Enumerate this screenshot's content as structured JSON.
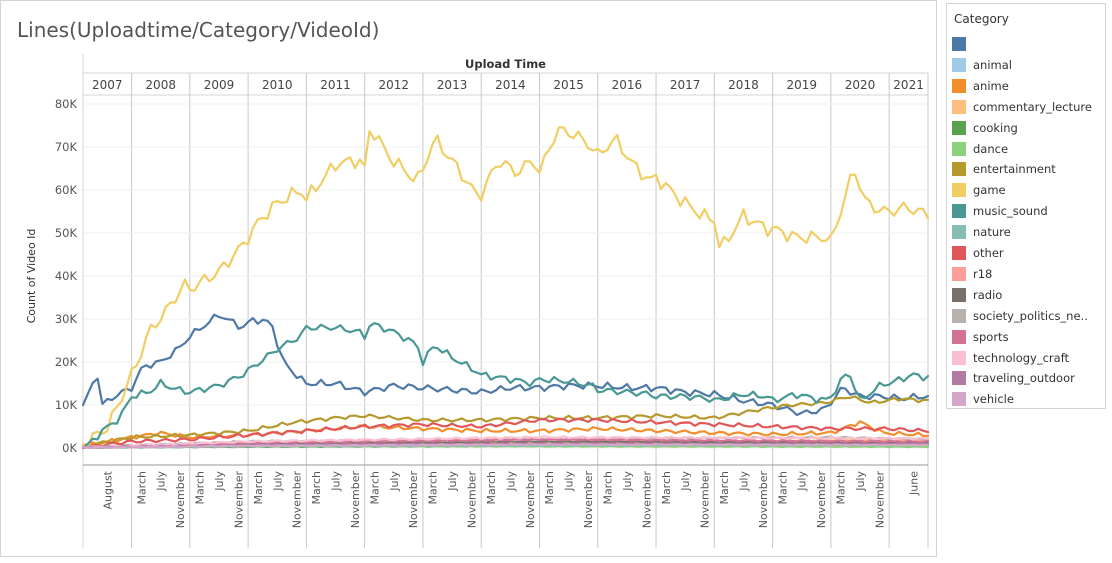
{
  "chart_data": {
    "type": "line",
    "title": "Lines(Uploadtime/Category/VideoId)",
    "column_header": "Upload Time",
    "years": [
      "2007",
      "2008",
      "2009",
      "2010",
      "2011",
      "2012",
      "2013",
      "2014",
      "2015",
      "2016",
      "2017",
      "2018",
      "2019",
      "2020",
      "2021"
    ],
    "year_month_labels": [
      [
        "August"
      ],
      [
        "March",
        "July",
        "November"
      ],
      [
        "March",
        "July",
        "November"
      ],
      [
        "March",
        "July",
        "November"
      ],
      [
        "March",
        "July",
        "November"
      ],
      [
        "March",
        "July",
        "November"
      ],
      [
        "March",
        "July",
        "November"
      ],
      [
        "March",
        "July",
        "November"
      ],
      [
        "March",
        "July",
        "November"
      ],
      [
        "March",
        "July",
        "November"
      ],
      [
        "March",
        "July",
        "November"
      ],
      [
        "March",
        "July",
        "November"
      ],
      [
        "March",
        "July",
        "November"
      ],
      [
        "March",
        "July",
        "November"
      ],
      [
        "June"
      ]
    ],
    "ylabel": "Count of Video Id",
    "y_ticks": [
      "0K",
      "10K",
      "20K",
      "30K",
      "40K",
      "50K",
      "60K",
      "70K",
      "80K"
    ],
    "y_tick_values": [
      0,
      10000,
      20000,
      30000,
      40000,
      50000,
      60000,
      70000,
      80000
    ],
    "ylim": [
      0,
      80000
    ],
    "x_start": "2007-03",
    "x_end": "2021-09",
    "legend_title": "Category",
    "series": [
      {
        "name": "",
        "color": "#4e79a7",
        "anchors": [
          [
            2007.2,
            10000
          ],
          [
            2007.4,
            18000
          ],
          [
            2007.5,
            10000
          ],
          [
            2007.7,
            12000
          ],
          [
            2008.0,
            14000
          ],
          [
            2008.2,
            19000
          ],
          [
            2008.5,
            20000
          ],
          [
            2008.8,
            23000
          ],
          [
            2009.0,
            26000
          ],
          [
            2009.5,
            31000
          ],
          [
            2009.9,
            28000
          ],
          [
            2010.1,
            30000
          ],
          [
            2010.4,
            29000
          ],
          [
            2010.6,
            20000
          ],
          [
            2010.9,
            16000
          ],
          [
            2011.0,
            15000
          ],
          [
            2011.5,
            15000
          ],
          [
            2012.0,
            13000
          ],
          [
            2012.5,
            14500
          ],
          [
            2013.0,
            14000
          ],
          [
            2013.5,
            13500
          ],
          [
            2014.0,
            13000
          ],
          [
            2014.5,
            14000
          ],
          [
            2015.0,
            14000
          ],
          [
            2015.5,
            14500
          ],
          [
            2016.0,
            14500
          ],
          [
            2016.5,
            14000
          ],
          [
            2017.0,
            14000
          ],
          [
            2017.5,
            13000
          ],
          [
            2018.0,
            12500
          ],
          [
            2018.5,
            11000
          ],
          [
            2019.0,
            10000
          ],
          [
            2019.5,
            8000
          ],
          [
            2019.9,
            9000
          ],
          [
            2020.2,
            14000
          ],
          [
            2020.5,
            12000
          ],
          [
            2020.9,
            12000
          ],
          [
            2021.2,
            11500
          ],
          [
            2021.6,
            12000
          ]
        ],
        "amp": 900
      },
      {
        "name": "animal",
        "color": "#a0cbe8",
        "anchors": [
          [
            2007.2,
            100
          ],
          [
            2010.0,
            700
          ],
          [
            2014.0,
            1000
          ],
          [
            2018.0,
            900
          ],
          [
            2021.6,
            1000
          ]
        ],
        "amp": 150
      },
      {
        "name": "anime",
        "color": "#f28e2b",
        "anchors": [
          [
            2007.2,
            500
          ],
          [
            2008.0,
            2500
          ],
          [
            2008.5,
            3500
          ],
          [
            2009.0,
            2500
          ],
          [
            2010.0,
            3000
          ],
          [
            2011.0,
            4000
          ],
          [
            2012.0,
            5000
          ],
          [
            2013.0,
            4500
          ],
          [
            2014.0,
            4000
          ],
          [
            2015.0,
            4000
          ],
          [
            2016.0,
            4500
          ],
          [
            2017.0,
            4000
          ],
          [
            2018.0,
            3500
          ],
          [
            2019.0,
            3200
          ],
          [
            2020.0,
            3500
          ],
          [
            2020.5,
            6000
          ],
          [
            2020.9,
            3500
          ],
          [
            2021.6,
            3000
          ]
        ],
        "amp": 500
      },
      {
        "name": "commentary_lecture",
        "color": "#ffbe7d",
        "anchors": [
          [
            2007.2,
            100
          ],
          [
            2010.0,
            700
          ],
          [
            2014.0,
            1300
          ],
          [
            2018.0,
            1600
          ],
          [
            2021.6,
            2000
          ]
        ],
        "amp": 200
      },
      {
        "name": "cooking",
        "color": "#59a14f",
        "anchors": [
          [
            2007.2,
            100
          ],
          [
            2010.0,
            300
          ],
          [
            2015.0,
            500
          ],
          [
            2021.6,
            700
          ]
        ],
        "amp": 100
      },
      {
        "name": "dance",
        "color": "#8cd17d",
        "anchors": [
          [
            2007.2,
            100
          ],
          [
            2010.0,
            500
          ],
          [
            2015.0,
            400
          ],
          [
            2021.6,
            300
          ]
        ],
        "amp": 100
      },
      {
        "name": "entertainment",
        "color": "#b6992d",
        "anchors": [
          [
            2007.2,
            500
          ],
          [
            2008.0,
            2500
          ],
          [
            2009.0,
            3000
          ],
          [
            2010.0,
            4000
          ],
          [
            2010.8,
            6000
          ],
          [
            2011.5,
            7000
          ],
          [
            2012.0,
            7500
          ],
          [
            2013.0,
            6500
          ],
          [
            2014.0,
            6500
          ],
          [
            2015.0,
            7000
          ],
          [
            2016.0,
            7000
          ],
          [
            2017.0,
            7500
          ],
          [
            2018.0,
            7000
          ],
          [
            2018.8,
            9000
          ],
          [
            2019.3,
            10000
          ],
          [
            2019.9,
            10500
          ],
          [
            2020.3,
            12000
          ],
          [
            2020.7,
            10500
          ],
          [
            2021.2,
            11500
          ],
          [
            2021.6,
            11000
          ]
        ],
        "amp": 500
      },
      {
        "name": "game",
        "color": "#f1ce63",
        "anchors": [
          [
            2007.2,
            1000
          ],
          [
            2007.6,
            5000
          ],
          [
            2007.9,
            14000
          ],
          [
            2008.1,
            20000
          ],
          [
            2008.3,
            27000
          ],
          [
            2008.6,
            32000
          ],
          [
            2008.9,
            38000
          ],
          [
            2009.0,
            37000
          ],
          [
            2009.5,
            41000
          ],
          [
            2009.9,
            47000
          ],
          [
            2010.2,
            53000
          ],
          [
            2010.5,
            57000
          ],
          [
            2010.9,
            60000
          ],
          [
            2011.0,
            58000
          ],
          [
            2011.5,
            66000
          ],
          [
            2011.9,
            67000
          ],
          [
            2012.0,
            65000
          ],
          [
            2012.1,
            75000
          ],
          [
            2012.4,
            68000
          ],
          [
            2012.9,
            62000
          ],
          [
            2013.0,
            65000
          ],
          [
            2013.2,
            72000
          ],
          [
            2013.6,
            65000
          ],
          [
            2013.9,
            59000
          ],
          [
            2014.0,
            59000
          ],
          [
            2014.3,
            67000
          ],
          [
            2014.6,
            64000
          ],
          [
            2014.9,
            67000
          ],
          [
            2015.0,
            64000
          ],
          [
            2015.3,
            74000
          ],
          [
            2015.6,
            73000
          ],
          [
            2015.9,
            70000
          ],
          [
            2016.0,
            68000
          ],
          [
            2016.3,
            72000
          ],
          [
            2016.6,
            66000
          ],
          [
            2016.9,
            62000
          ],
          [
            2017.0,
            63000
          ],
          [
            2017.4,
            58000
          ],
          [
            2017.8,
            54000
          ],
          [
            2018.0,
            53000
          ],
          [
            2018.1,
            46000
          ],
          [
            2018.5,
            54000
          ],
          [
            2018.9,
            51000
          ],
          [
            2019.0,
            51000
          ],
          [
            2019.4,
            49000
          ],
          [
            2019.9,
            49000
          ],
          [
            2020.0,
            48000
          ],
          [
            2020.4,
            65000
          ],
          [
            2020.6,
            57000
          ],
          [
            2020.9,
            55000
          ],
          [
            2021.0,
            55000
          ],
          [
            2021.3,
            56000
          ],
          [
            2021.6,
            54500
          ]
        ],
        "amp": 1800
      },
      {
        "name": "music_sound",
        "color": "#499894",
        "anchors": [
          [
            2007.2,
            0
          ],
          [
            2007.5,
            4000
          ],
          [
            2007.8,
            7000
          ],
          [
            2008.0,
            12000
          ],
          [
            2008.3,
            13000
          ],
          [
            2008.5,
            15000
          ],
          [
            2008.8,
            13500
          ],
          [
            2009.0,
            13000
          ],
          [
            2009.5,
            14500
          ],
          [
            2009.9,
            17000
          ],
          [
            2010.2,
            20000
          ],
          [
            2010.5,
            23000
          ],
          [
            2010.9,
            26000
          ],
          [
            2011.0,
            28000
          ],
          [
            2011.5,
            28000
          ],
          [
            2011.9,
            27000
          ],
          [
            2012.0,
            26000
          ],
          [
            2012.1,
            29000
          ],
          [
            2012.5,
            27000
          ],
          [
            2012.9,
            24000
          ],
          [
            2013.0,
            20000
          ],
          [
            2013.2,
            24000
          ],
          [
            2013.5,
            21000
          ],
          [
            2013.9,
            18000
          ],
          [
            2014.0,
            17000
          ],
          [
            2014.5,
            16000
          ],
          [
            2014.9,
            15000
          ],
          [
            2015.0,
            16000
          ],
          [
            2015.5,
            15500
          ],
          [
            2015.9,
            14500
          ],
          [
            2016.0,
            13500
          ],
          [
            2016.5,
            13000
          ],
          [
            2016.9,
            12500
          ],
          [
            2017.0,
            12000
          ],
          [
            2017.5,
            12000
          ],
          [
            2017.9,
            11500
          ],
          [
            2018.0,
            11000
          ],
          [
            2018.5,
            12500
          ],
          [
            2018.9,
            12000
          ],
          [
            2019.0,
            11000
          ],
          [
            2019.4,
            12500
          ],
          [
            2019.9,
            11000
          ],
          [
            2020.0,
            12000
          ],
          [
            2020.3,
            18000
          ],
          [
            2020.5,
            11000
          ],
          [
            2020.9,
            15000
          ],
          [
            2021.0,
            15000
          ],
          [
            2021.4,
            17000
          ],
          [
            2021.6,
            16500
          ]
        ],
        "amp": 900
      },
      {
        "name": "nature",
        "color": "#86bcb6",
        "anchors": [
          [
            2007.2,
            100
          ],
          [
            2010.0,
            400
          ],
          [
            2015.0,
            600
          ],
          [
            2021.6,
            800
          ]
        ],
        "amp": 120
      },
      {
        "name": "other",
        "color": "#e15759",
        "anchors": [
          [
            2007.2,
            200
          ],
          [
            2008.0,
            1500
          ],
          [
            2009.0,
            2000
          ],
          [
            2010.0,
            3000
          ],
          [
            2011.0,
            4000
          ],
          [
            2012.0,
            5000
          ],
          [
            2013.0,
            5500
          ],
          [
            2014.0,
            5000
          ],
          [
            2015.0,
            6500
          ],
          [
            2016.0,
            6500
          ],
          [
            2017.0,
            6000
          ],
          [
            2018.0,
            5500
          ],
          [
            2019.0,
            5000
          ],
          [
            2020.0,
            4500
          ],
          [
            2021.0,
            4500
          ],
          [
            2021.6,
            4000
          ]
        ],
        "amp": 500
      },
      {
        "name": "r18",
        "color": "#ff9d9a",
        "anchors": [
          [
            2007.2,
            100
          ],
          [
            2010.0,
            600
          ],
          [
            2015.0,
            900
          ],
          [
            2021.6,
            800
          ]
        ],
        "amp": 150
      },
      {
        "name": "radio",
        "color": "#79706e",
        "anchors": [
          [
            2007.2,
            100
          ],
          [
            2010.0,
            1000
          ],
          [
            2015.0,
            1500
          ],
          [
            2021.6,
            1200
          ]
        ],
        "amp": 150
      },
      {
        "name": "society_politics_ne..",
        "color": "#bab0ac",
        "anchors": [
          [
            2007.2,
            200
          ],
          [
            2010.0,
            1500
          ],
          [
            2015.0,
            2000
          ],
          [
            2020.0,
            2500
          ],
          [
            2021.6,
            2000
          ]
        ],
        "amp": 250
      },
      {
        "name": "sports",
        "color": "#d37295",
        "anchors": [
          [
            2007.2,
            100
          ],
          [
            2010.0,
            1200
          ],
          [
            2015.0,
            2000
          ],
          [
            2021.6,
            1500
          ]
        ],
        "amp": 200
      },
      {
        "name": "technology_craft",
        "color": "#fabfd2",
        "anchors": [
          [
            2007.2,
            100
          ],
          [
            2010.0,
            1500
          ],
          [
            2015.0,
            2500
          ],
          [
            2021.6,
            2200
          ]
        ],
        "amp": 250
      },
      {
        "name": "traveling_outdoor",
        "color": "#b07aa1",
        "anchors": [
          [
            2007.2,
            100
          ],
          [
            2010.0,
            700
          ],
          [
            2015.0,
            1000
          ],
          [
            2021.6,
            900
          ]
        ],
        "amp": 150
      },
      {
        "name": "vehicle",
        "color": "#d4a6c8",
        "anchors": [
          [
            2007.2,
            100
          ],
          [
            2010.0,
            500
          ],
          [
            2015.0,
            800
          ],
          [
            2021.6,
            700
          ]
        ],
        "amp": 120
      }
    ]
  }
}
